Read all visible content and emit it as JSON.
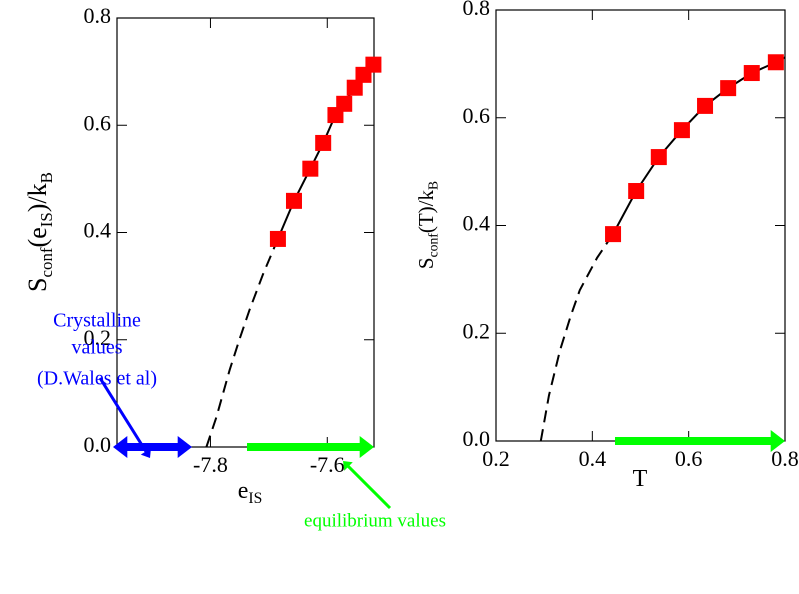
{
  "chart_data": [
    {
      "type": "scatter",
      "xlabel": [
        {
          "text": "e"
        },
        {
          "text": "IS",
          "sub": true
        }
      ],
      "ylabel": [
        {
          "text": "S"
        },
        {
          "text": "conf",
          "sub": true
        },
        {
          "text": "(e"
        },
        {
          "text": "IS",
          "sub": true
        },
        {
          "text": ")/k"
        },
        {
          "text": "B",
          "sub": true
        }
      ],
      "x": [
        -7.6845,
        -7.657,
        -7.629,
        -7.607,
        -7.586,
        -7.571,
        -7.553,
        -7.538,
        -7.521
      ],
      "values": [
        0.388,
        0.459,
        0.519,
        0.567,
        0.619,
        0.64,
        0.67,
        0.694,
        0.713
      ],
      "color": "#ff0000",
      "curves": [
        {
          "x": [
            -7.807,
            -7.79,
            -7.767,
            -7.75,
            -7.733,
            -7.71,
            -7.6845
          ],
          "values": [
            0,
            0.055,
            0.144,
            0.202,
            0.256,
            0.322,
            0.388
          ],
          "dash": true
        },
        {
          "x": [
            -7.6845,
            -7.657,
            -7.629,
            -7.607,
            -7.586,
            -7.571,
            -7.553,
            -7.538,
            -7.52
          ],
          "values": [
            0.388,
            0.459,
            0.519,
            0.567,
            0.619,
            0.641,
            0.67,
            0.694,
            0.715
          ],
          "dash": false
        }
      ],
      "xlim": [
        -7.96,
        -7.52
      ],
      "ylim": [
        0,
        0.8
      ],
      "xticks": [
        -7.8,
        -7.6
      ],
      "yticks": [
        {
          "value": 0,
          "label": "0.0"
        },
        0.2,
        0.4,
        0.6,
        0.8
      ],
      "annotations": [
        {
          "lines": [
            "Crystalline",
            "values",
            "(D.Wales et al)"
          ],
          "color": "#0000ff"
        },
        {
          "lines": [
            "equilibrium values"
          ],
          "color": "#00ff00"
        }
      ]
    },
    {
      "type": "scatter",
      "xlabel": [
        {
          "text": "T"
        }
      ],
      "ylabel": [
        {
          "text": "S"
        },
        {
          "text": "conf",
          "sub": true
        },
        {
          "text": "(T)/k"
        },
        {
          "text": "B",
          "sub": true
        }
      ],
      "x": [
        0.443,
        0.491,
        0.538,
        0.586,
        0.634,
        0.682,
        0.731,
        0.781
      ],
      "values": [
        0.384,
        0.464,
        0.527,
        0.577,
        0.622,
        0.655,
        0.683,
        0.703
      ],
      "color": "#ff0000",
      "curves": [
        {
          "x": [
            0.293,
            0.31,
            0.333,
            0.355,
            0.374,
            0.41,
            0.443
          ],
          "values": [
            0,
            0.085,
            0.169,
            0.232,
            0.28,
            0.34,
            0.384
          ],
          "dash": true
        },
        {
          "x": [
            0.443,
            0.491,
            0.538,
            0.586,
            0.634,
            0.682,
            0.731,
            0.781,
            0.8
          ],
          "values": [
            0.384,
            0.464,
            0.527,
            0.577,
            0.622,
            0.655,
            0.683,
            0.703,
            0.712
          ],
          "dash": false
        }
      ],
      "xlim": [
        0.2,
        0.8
      ],
      "ylim": [
        0,
        0.8
      ],
      "xticks": [
        0.2,
        0.4,
        0.6,
        0.8
      ],
      "yticks": [
        {
          "value": 0,
          "label": "0.0"
        },
        0.2,
        0.4,
        0.6,
        0.8
      ]
    }
  ]
}
